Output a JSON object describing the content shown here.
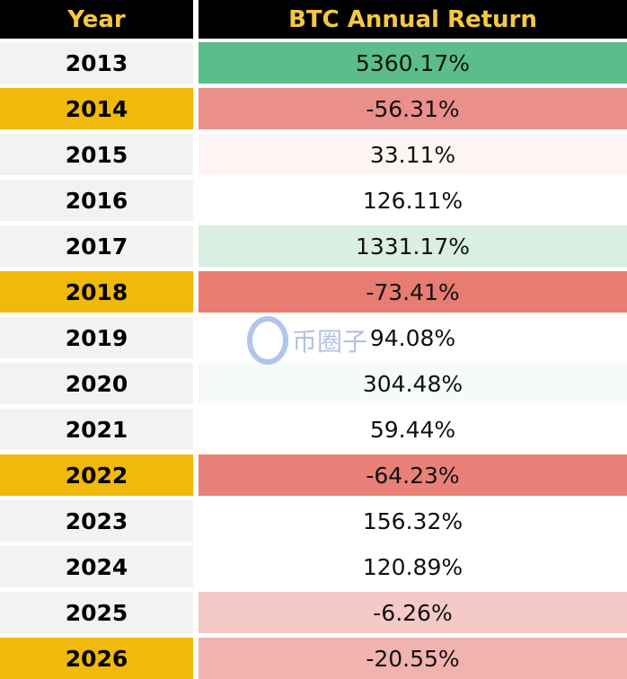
{
  "table": {
    "header": [
      "Year",
      "BTC Annual Return"
    ],
    "rows": [
      [
        "2013",
        "5360.17%"
      ],
      [
        "2014",
        "-56.31%"
      ],
      [
        "2015",
        "33.11%"
      ],
      [
        "2016",
        "126.11%"
      ],
      [
        "2017",
        "1331.17%"
      ],
      [
        "2018",
        "-73.41%"
      ],
      [
        "2019",
        "94.08%"
      ],
      [
        "2020",
        "304.48%"
      ],
      [
        "2021",
        "59.44%"
      ],
      [
        "2022",
        "-64.23%"
      ],
      [
        "2023",
        "156.32%"
      ],
      [
        "2024",
        "120.89%"
      ],
      [
        "2025",
        "-6.26%"
      ],
      [
        "2026",
        "-20.55%"
      ]
    ],
    "year_colors": [
      "#f2f2f2",
      "#f0b90b",
      "#f2f2f2",
      "#f2f2f2",
      "#f2f2f2",
      "#f0b90b",
      "#f2f2f2",
      "#f2f2f2",
      "#f2f2f2",
      "#f0b90b",
      "#f2f2f2",
      "#f2f2f2",
      "#f2f2f2",
      "#f0b90b"
    ],
    "return_colors": [
      "#5bbd8a",
      "#ea8f8a",
      "#fdf5f4",
      "#ffffff",
      "#d8efe2",
      "#e87b72",
      "#ffffff",
      "#f6faf8",
      "#ffffff",
      "#e98178",
      "#ffffff",
      "#ffffff",
      "#f4c9c6",
      "#f0b3ae"
    ]
  },
  "watermark": "币圈子"
}
